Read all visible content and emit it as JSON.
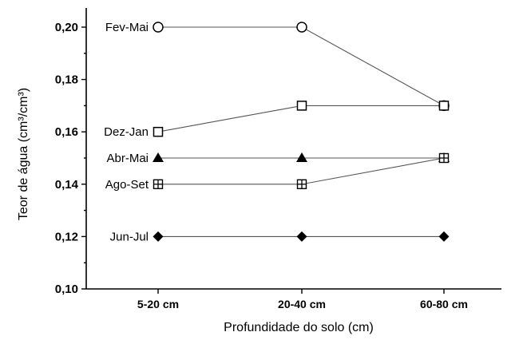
{
  "chart_data": {
    "type": "line",
    "title": "",
    "xlabel": "Profundidade do solo (cm)",
    "ylabel": "Teor de água (cm³/cm³)",
    "categories": [
      "5-20 cm",
      "20-40 cm",
      "60-80 cm"
    ],
    "ylim": [
      0.1,
      0.2
    ],
    "yticks": [
      "0,10",
      "0,12",
      "0,14",
      "0,16",
      "0,18",
      "0,20"
    ],
    "ytick_values": [
      0.1,
      0.12,
      0.14,
      0.16,
      0.18,
      0.2
    ],
    "grid": false,
    "series": [
      {
        "name": "Fev-Mai",
        "values": [
          0.2,
          0.2,
          0.17
        ],
        "marker": "open-circle"
      },
      {
        "name": "Dez-Jan",
        "values": [
          0.16,
          0.17,
          0.17
        ],
        "marker": "open-square"
      },
      {
        "name": "Abr-Mai",
        "values": [
          0.15,
          0.15,
          0.15
        ],
        "marker": "filled-triangle"
      },
      {
        "name": "Ago-Set",
        "values": [
          0.14,
          0.14,
          0.15
        ],
        "marker": "crossed-square"
      },
      {
        "name": "Jun-Jul",
        "values": [
          0.12,
          0.12,
          0.12
        ],
        "marker": "filled-diamond"
      }
    ]
  }
}
